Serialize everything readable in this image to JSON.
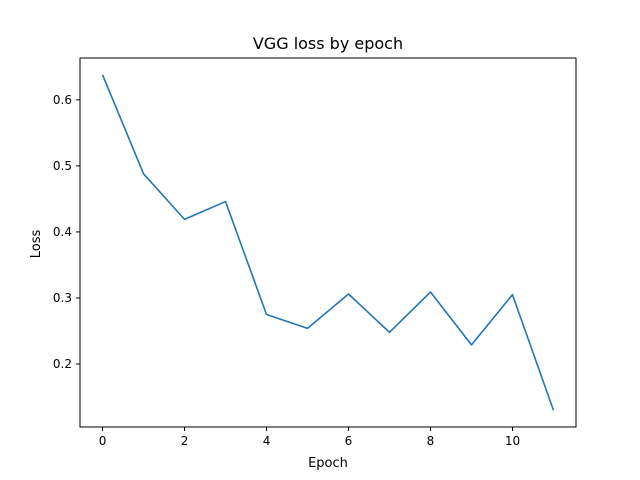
{
  "chart_data": {
    "type": "line",
    "title": "VGG loss by epoch",
    "xlabel": "Epoch",
    "ylabel": "Loss",
    "x": [
      0,
      1,
      2,
      3,
      4,
      5,
      6,
      7,
      8,
      9,
      10,
      11
    ],
    "series": [
      {
        "values": [
          0.638,
          0.488,
          0.419,
          0.446,
          0.275,
          0.254,
          0.306,
          0.248,
          0.309,
          0.229,
          0.305,
          0.13
        ],
        "color": "#1f77b4"
      }
    ],
    "xticks": [
      0,
      2,
      4,
      6,
      8,
      10
    ],
    "yticks": [
      0.2,
      0.3,
      0.4,
      0.5,
      0.6
    ],
    "xlim": [
      -0.55,
      11.55
    ],
    "ylim": [
      0.1046,
      0.6634
    ],
    "grid": false,
    "legend": "none"
  }
}
